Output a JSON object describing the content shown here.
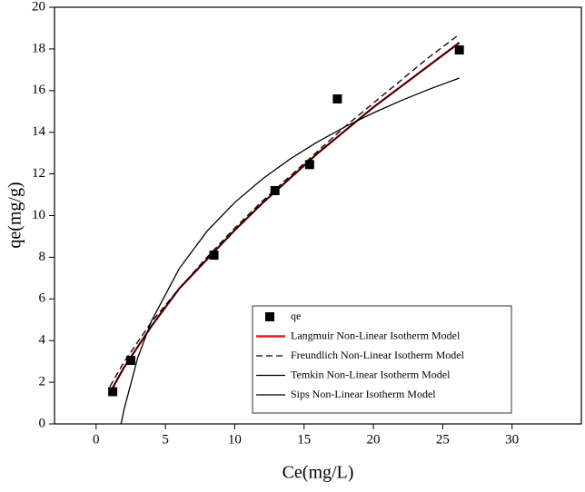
{
  "chart_data": {
    "type": "scatter",
    "x_label": "Ce(mg/L)",
    "y_label": "qe(mg/g)",
    "xlim": [
      -3,
      35
    ],
    "ylim": [
      0,
      20
    ],
    "xticks": [
      0,
      5,
      10,
      15,
      20,
      25,
      30
    ],
    "yticks": [
      0,
      2,
      4,
      6,
      8,
      10,
      12,
      14,
      16,
      18,
      20
    ],
    "series": [
      {
        "name": "qe",
        "type": "scatter",
        "color": "#000000",
        "x": [
          1.2,
          2.5,
          8.5,
          12.9,
          15.4,
          17.4,
          26.2
        ],
        "values": [
          1.55,
          3.05,
          8.1,
          11.2,
          12.45,
          15.6,
          17.95
        ]
      },
      {
        "name": "Langmuir Non-Linear Isotherm Model",
        "type": "line",
        "color": "#e02020",
        "dashed": false,
        "x": [
          1,
          2,
          4,
          6,
          8,
          10,
          12,
          14,
          16,
          18,
          20,
          22,
          24,
          26.2
        ],
        "values": [
          1.5,
          2.7,
          4.7,
          6.5,
          7.9,
          9.3,
          10.6,
          11.8,
          13.0,
          14.1,
          15.2,
          16.2,
          17.2,
          18.3
        ]
      },
      {
        "name": "Freundlich Non-Linear Isotherm Model",
        "type": "line",
        "color": "#000000",
        "dashed": true,
        "x": [
          1,
          2,
          4,
          6,
          8,
          10,
          12,
          14,
          16,
          18,
          20,
          22,
          24,
          26.2
        ],
        "values": [
          1.8,
          2.96,
          4.9,
          6.5,
          8.0,
          9.4,
          10.7,
          11.9,
          13.1,
          14.3,
          15.4,
          16.5,
          17.6,
          18.7
        ]
      },
      {
        "name": "Temkin Non-Linear Isotherm Model",
        "type": "line",
        "color": "#000000",
        "dashed": false,
        "x": [
          1.8,
          2,
          3,
          4,
          6,
          8,
          10,
          12,
          14,
          16,
          18,
          20,
          22,
          24,
          26.2
        ],
        "values": [
          0,
          0.65,
          3.17,
          4.95,
          7.46,
          9.25,
          10.63,
          11.76,
          12.72,
          13.55,
          14.28,
          14.93,
          15.52,
          16.06,
          16.6
        ]
      },
      {
        "name": "Sips Non-Linear Isotherm Model",
        "type": "line",
        "color": "#000000",
        "dashed": false,
        "x": [
          1,
          2,
          4,
          6,
          8,
          10,
          12,
          14,
          16,
          18,
          20,
          22,
          24,
          26.2
        ],
        "values": [
          1.5,
          2.7,
          4.7,
          6.5,
          7.9,
          9.3,
          10.6,
          11.8,
          13.0,
          14.1,
          15.2,
          16.2,
          17.2,
          18.3
        ]
      }
    ]
  }
}
